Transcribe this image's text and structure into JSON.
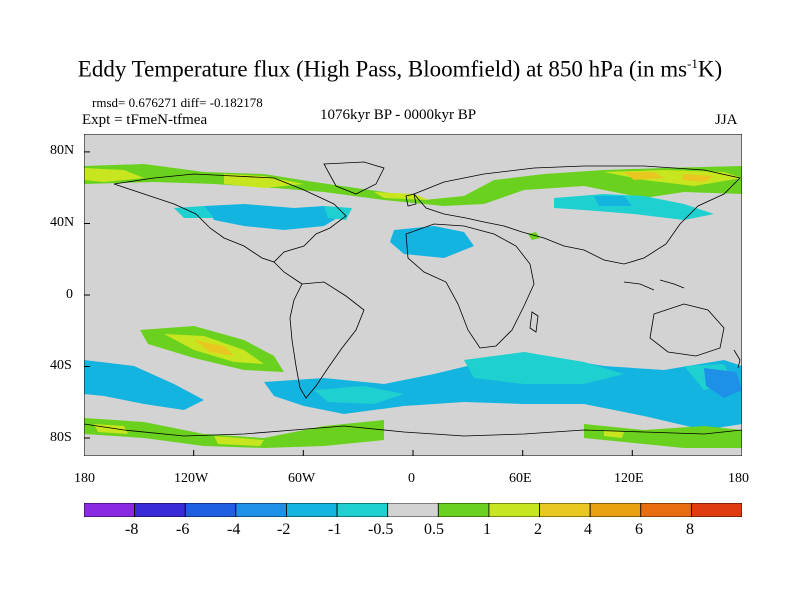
{
  "title": {
    "main": "Eddy Temperature flux (High Pass, Bloomfield) at 850 hPa (in ms",
    "sup": "-1",
    "unit_tail": "K)"
  },
  "subtitle": {
    "stats": "rmsd= 0.676271 diff= -0.182178",
    "expt": "Expt = tFmeN-tfmea",
    "period": "1076kyr BP - 0000kyr BP",
    "season": "JJA"
  },
  "map": {
    "projection": "cylindrical-equidistant",
    "lon_range": [
      -180,
      180
    ],
    "lat_range": [
      -90,
      90
    ],
    "lat_ticks": [
      "80N",
      "40N",
      "0",
      "40S",
      "80S"
    ],
    "lon_ticks": [
      "180",
      "120W",
      "60W",
      "0",
      "60E",
      "120E",
      "180"
    ],
    "background_color": "#d3d3d3",
    "coastline_color": "#000000"
  },
  "colorbar": {
    "labels": [
      "-8",
      "-6",
      "-4",
      "-2",
      "-1",
      "-0.5",
      "0.5",
      "1",
      "2",
      "4",
      "6",
      "8"
    ],
    "colors": [
      "#8a2be2",
      "#3a2bd8",
      "#1f5fe0",
      "#1e90e8",
      "#14b4e0",
      "#1ed0d0",
      "#d3d3d3",
      "#6ad21e",
      "#c8e620",
      "#e8c820",
      "#e8a010",
      "#e86c10",
      "#e03c10"
    ]
  }
}
